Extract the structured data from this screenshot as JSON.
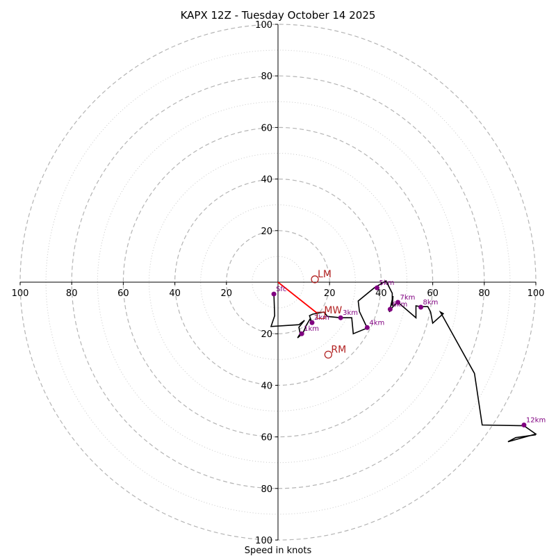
{
  "chart_data": {
    "type": "line",
    "subtype": "hodograph",
    "title": "KAPX 12Z - Tuesday October 14 2025",
    "xlabel": "Speed in knots",
    "ylabel": "",
    "range": [
      -100,
      100
    ],
    "ring_major": [
      20,
      40,
      60,
      80,
      100
    ],
    "ring_minor": [
      10,
      30,
      50,
      70,
      90
    ],
    "tick_labels_x": [
      "100",
      "80",
      "60",
      "40",
      "20",
      "20",
      "40",
      "60",
      "80",
      "100"
    ],
    "tick_values_x": [
      -100,
      -80,
      -60,
      -40,
      -20,
      20,
      40,
      60,
      80,
      100
    ],
    "tick_labels_y": [
      "100",
      "80",
      "60",
      "40",
      "20",
      "20",
      "40",
      "60",
      "80",
      "100"
    ],
    "tick_values_y": [
      100,
      80,
      60,
      40,
      20,
      -20,
      -40,
      -60,
      -80,
      -100
    ],
    "grid": true,
    "trace_color": "#000000",
    "marker_color": "#800080",
    "motion_color": "#b22222",
    "trace": [
      [
        -1.6,
        -4.6
      ],
      [
        -1.3,
        -13.0
      ],
      [
        -2.7,
        -17.2
      ],
      [
        8.1,
        -16.5
      ],
      [
        10.3,
        -14.8
      ],
      [
        8.1,
        -17.5
      ],
      [
        8.6,
        -20.0
      ],
      [
        7.6,
        -21.6
      ],
      [
        9.7,
        -19.7
      ],
      [
        11.1,
        -16.5
      ],
      [
        12.4,
        -14.3
      ],
      [
        13.2,
        -15.9
      ],
      [
        12.2,
        -13.0
      ],
      [
        13.5,
        -12.4
      ],
      [
        17.8,
        -11.6
      ],
      [
        19.2,
        -13.3
      ],
      [
        24.3,
        -13.8
      ],
      [
        28.6,
        -13.8
      ],
      [
        29.2,
        -20.0
      ],
      [
        34.6,
        -17.8
      ],
      [
        31.6,
        -11.4
      ],
      [
        31.1,
        -7.3
      ],
      [
        37.3,
        -2.2
      ],
      [
        41.9,
        0.5
      ],
      [
        44.3,
        -4.3
      ],
      [
        44.3,
        -9.2
      ],
      [
        44.6,
        -5.4
      ],
      [
        43.2,
        -11.6
      ],
      [
        43.5,
        -10.8
      ],
      [
        45.1,
        -8.9
      ],
      [
        46.5,
        -7.8
      ],
      [
        53.5,
        -13.8
      ],
      [
        53.5,
        -9.2
      ],
      [
        55.4,
        -9.5
      ],
      [
        58.1,
        -9.5
      ],
      [
        59.2,
        -11.6
      ],
      [
        60.0,
        -15.9
      ],
      [
        64.1,
        -12.2
      ],
      [
        63.0,
        -11.6
      ],
      [
        76.2,
        -35.4
      ],
      [
        79.2,
        -55.4
      ],
      [
        95.4,
        -55.7
      ],
      [
        100.0,
        -58.9
      ],
      [
        89.2,
        -61.9
      ],
      [
        92.2,
        -60.3
      ],
      [
        100.0,
        -59.2
      ]
    ],
    "markers": [
      {
        "label": "Sfc",
        "u": -1.6,
        "v": -4.6
      },
      {
        "label": "1km",
        "u": 9.2,
        "v": -20.0
      },
      {
        "label": "2km",
        "u": 13.2,
        "v": -15.7
      },
      {
        "label": "3km",
        "u": 24.3,
        "v": -13.8
      },
      {
        "label": "4km",
        "u": 34.6,
        "v": -17.6
      },
      {
        "label": "5km",
        "u": 38.4,
        "v": -2.2
      },
      {
        "label": "6km",
        "u": 43.5,
        "v": -10.5
      },
      {
        "label": "7km",
        "u": 46.5,
        "v": -7.8
      },
      {
        "label": "8km",
        "u": 55.4,
        "v": -9.7
      },
      {
        "label": "12km",
        "u": 95.4,
        "v": -55.4
      }
    ],
    "motion_points": [
      {
        "label": "LM",
        "u": 14.3,
        "v": 1.1
      },
      {
        "label": "RM",
        "u": 19.5,
        "v": -28.1
      },
      {
        "label": "MW",
        "u": 16.8,
        "v": -13.0
      }
    ],
    "mean_wind_vector": {
      "from": [
        0,
        0
      ],
      "to": [
        15.4,
        -12.2
      ]
    }
  }
}
